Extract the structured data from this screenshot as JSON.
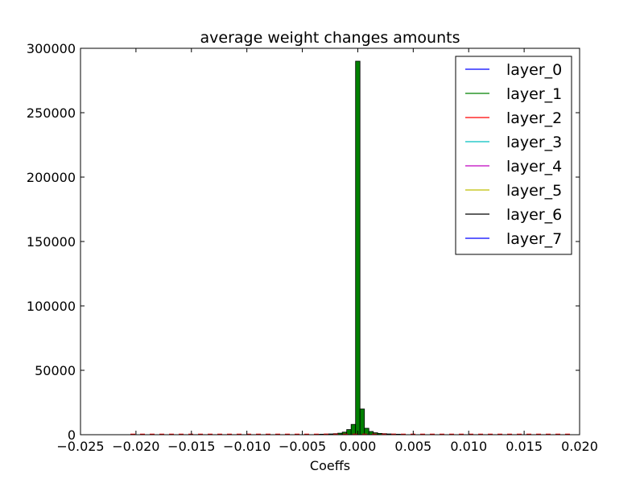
{
  "chart_data": {
    "type": "bar",
    "title": "average weight changes amounts",
    "xlabel": "Coeffs",
    "ylabel": "",
    "xlim": [
      -0.025,
      0.02
    ],
    "ylim": [
      0,
      300000
    ],
    "xticks": [
      -0.025,
      -0.02,
      -0.015,
      -0.01,
      -0.005,
      0.0,
      0.005,
      0.01,
      0.015,
      0.02
    ],
    "xtick_labels": [
      "−0.025",
      "−0.020",
      "−0.015",
      "−0.010",
      "−0.005",
      "0.000",
      "0.005",
      "0.010",
      "0.015",
      "0.020"
    ],
    "yticks": [
      0,
      50000,
      100000,
      150000,
      200000,
      250000,
      300000
    ],
    "ytick_labels": [
      "0",
      "50000",
      "100000",
      "150000",
      "200000",
      "250000",
      "300000"
    ],
    "grid": false,
    "legend_position": "top-right",
    "series": [
      {
        "name": "layer_0",
        "color": "#0000ff"
      },
      {
        "name": "layer_1",
        "color": "#008000"
      },
      {
        "name": "layer_2",
        "color": "#ff0000"
      },
      {
        "name": "layer_3",
        "color": "#00bfbf"
      },
      {
        "name": "layer_4",
        "color": "#bf00bf"
      },
      {
        "name": "layer_5",
        "color": "#bfbf00"
      },
      {
        "name": "layer_6",
        "color": "#000000"
      },
      {
        "name": "layer_7",
        "color": "#0000ff"
      }
    ],
    "bars": [
      {
        "x0": -0.0038,
        "x1": -0.0034,
        "value": 300,
        "color": "#008000"
      },
      {
        "x0": -0.0034,
        "x1": -0.003,
        "value": 400,
        "color": "#008000"
      },
      {
        "x0": -0.003,
        "x1": -0.0026,
        "value": 500,
        "color": "#008000"
      },
      {
        "x0": -0.0026,
        "x1": -0.0022,
        "value": 600,
        "color": "#008000"
      },
      {
        "x0": -0.0022,
        "x1": -0.0018,
        "value": 800,
        "color": "#008000"
      },
      {
        "x0": -0.0018,
        "x1": -0.0014,
        "value": 1200,
        "color": "#008000"
      },
      {
        "x0": -0.0014,
        "x1": -0.001,
        "value": 2000,
        "color": "#008000"
      },
      {
        "x0": -0.001,
        "x1": -0.0006,
        "value": 4000,
        "color": "#008000"
      },
      {
        "x0": -0.0006,
        "x1": -0.0002,
        "value": 8000,
        "color": "#008000"
      },
      {
        "x0": -0.0002,
        "x1": 0.0002,
        "value": 290000,
        "color": "#008000"
      },
      {
        "x0": 0.0002,
        "x1": 0.0006,
        "value": 20000,
        "color": "#008000"
      },
      {
        "x0": 0.0006,
        "x1": 0.001,
        "value": 5000,
        "color": "#008000"
      },
      {
        "x0": 0.001,
        "x1": 0.0014,
        "value": 2500,
        "color": "#008000"
      },
      {
        "x0": 0.0014,
        "x1": 0.0018,
        "value": 1500,
        "color": "#008000"
      },
      {
        "x0": 0.0018,
        "x1": 0.0022,
        "value": 1000,
        "color": "#008000"
      },
      {
        "x0": 0.0022,
        "x1": 0.0026,
        "value": 800,
        "color": "#008000"
      },
      {
        "x0": 0.0026,
        "x1": 0.003,
        "value": 600,
        "color": "#008000"
      },
      {
        "x0": 0.003,
        "x1": 0.0034,
        "value": 500,
        "color": "#008000"
      },
      {
        "x0": 0.0034,
        "x1": 0.0038,
        "value": 400,
        "color": "#008000"
      },
      {
        "x0": 0.0038,
        "x1": 0.0042,
        "value": 300,
        "color": "#008000"
      }
    ],
    "tail_range": [
      -0.0205,
      0.0195
    ],
    "tail_color": "#ff0000"
  }
}
